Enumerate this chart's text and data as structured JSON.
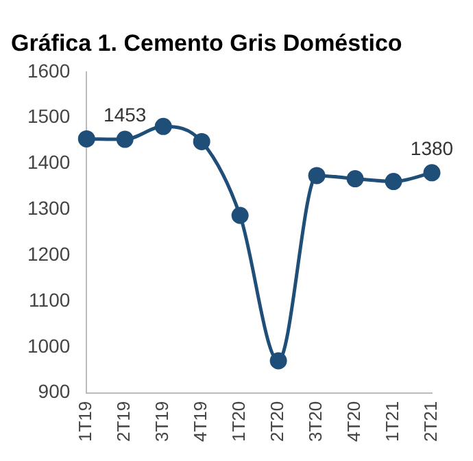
{
  "chart_data": {
    "type": "line",
    "title": "Gráfica 1. Cemento Gris Doméstico",
    "categories": [
      "1T19",
      "2T19",
      "3T19",
      "4T19",
      "1T20",
      "2T20",
      "3T20",
      "4T20",
      "1T21",
      "2T21"
    ],
    "series": [
      {
        "color": "#1f4e79",
        "values": [
          1454,
          1453,
          1481,
          1448,
          1287,
          970,
          1374,
          1367,
          1361,
          1380
        ],
        "value_labels": [
          null,
          "1453",
          null,
          null,
          null,
          null,
          null,
          null,
          null,
          "1380"
        ]
      }
    ],
    "ylim": [
      900,
      1600
    ],
    "yticks": [
      900,
      1000,
      1100,
      1200,
      1300,
      1400,
      1500,
      1600
    ],
    "grid": false,
    "legend": false,
    "marker": "circle",
    "line_style": "solid"
  }
}
